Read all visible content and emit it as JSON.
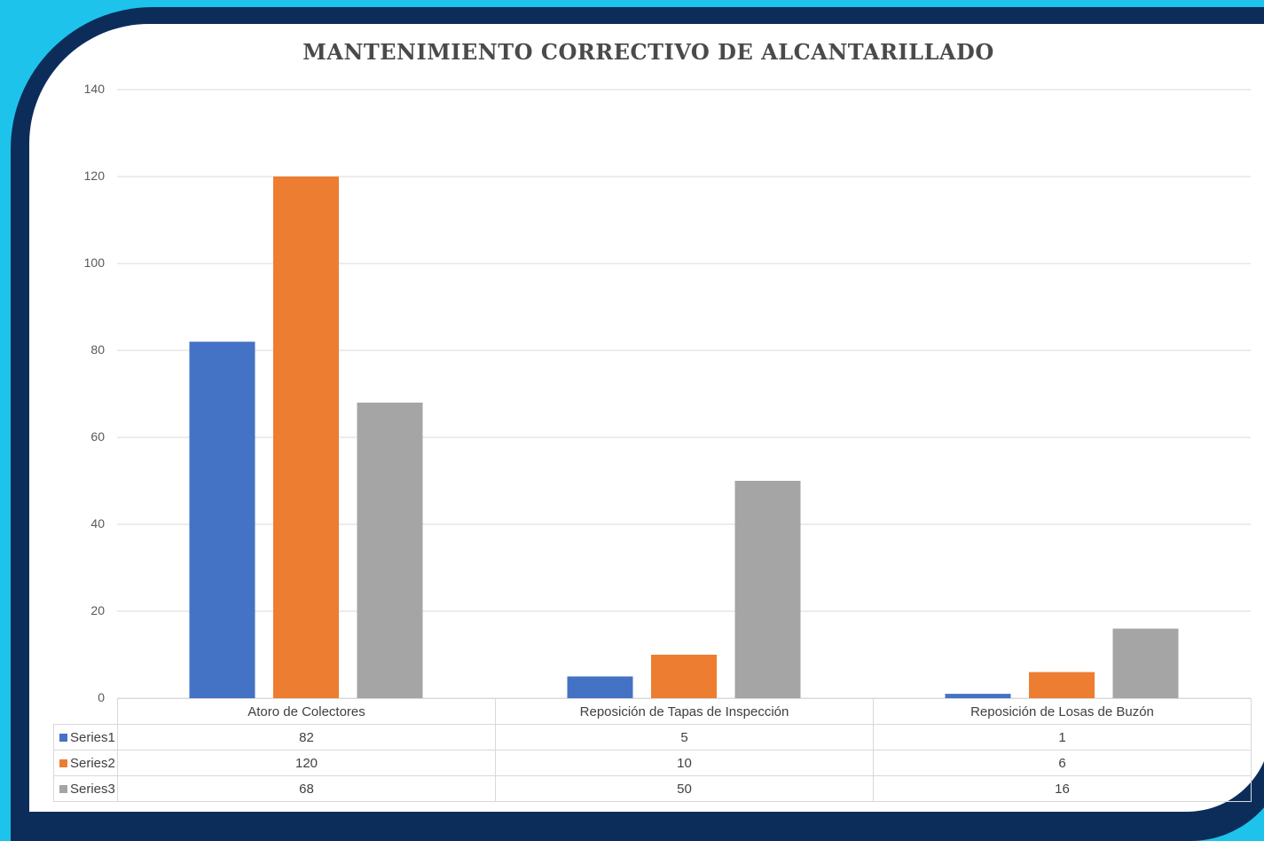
{
  "chart_data": {
    "type": "bar",
    "title": "MANTENIMIENTO CORRECTIVO DE ALCANTARILLADO",
    "categories": [
      "Atoro de Colectores",
      "Reposición de Tapas de Inspección",
      "Reposición de Losas de Buzón"
    ],
    "series": [
      {
        "name": "Series1",
        "color": "#4472c4",
        "values": [
          82,
          5,
          1
        ]
      },
      {
        "name": "Series2",
        "color": "#ed7d31",
        "values": [
          120,
          10,
          6
        ]
      },
      {
        "name": "Series3",
        "color": "#a5a5a5",
        "values": [
          68,
          50,
          16
        ]
      }
    ],
    "ylim": [
      0,
      140
    ],
    "y_ticks": [
      "0",
      "20",
      "40",
      "60",
      "80",
      "100",
      "120",
      "140"
    ],
    "grid": true,
    "legend": "data-table-below"
  },
  "colors": {
    "background": "#1ec3ec",
    "frame": "#0c2d5a",
    "panel": "#ffffff",
    "gridline": "#d9d9d9"
  }
}
